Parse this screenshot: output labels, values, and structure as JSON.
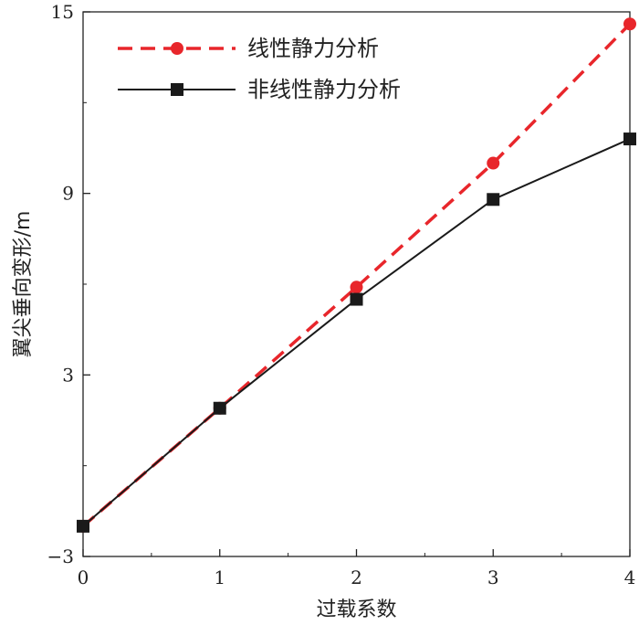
{
  "chart_data": {
    "type": "line",
    "title": "",
    "xlabel": "过载系数",
    "ylabel": "翼尖垂向变形/m",
    "xlim": [
      0,
      4
    ],
    "ylim": [
      -3,
      15
    ],
    "x_ticks": [
      "0",
      "1",
      "2",
      "3",
      "4"
    ],
    "y_ticks": [
      "-3",
      "3",
      "9",
      "15"
    ],
    "grid": false,
    "legend_position": "top-left",
    "series": [
      {
        "name": "线性静力分析",
        "color": "#e8262b",
        "line_style": "dashed",
        "marker": "circle",
        "x": [
          0,
          1,
          2,
          3,
          4
        ],
        "y": [
          -2.0,
          1.9,
          5.9,
          10.0,
          14.6
        ]
      },
      {
        "name": "非线性静力分析",
        "color": "#1a1a1a",
        "line_style": "solid",
        "marker": "square",
        "x": [
          0,
          1,
          2,
          3,
          4
        ],
        "y": [
          -2.0,
          1.9,
          5.5,
          8.8,
          10.8
        ]
      }
    ]
  }
}
